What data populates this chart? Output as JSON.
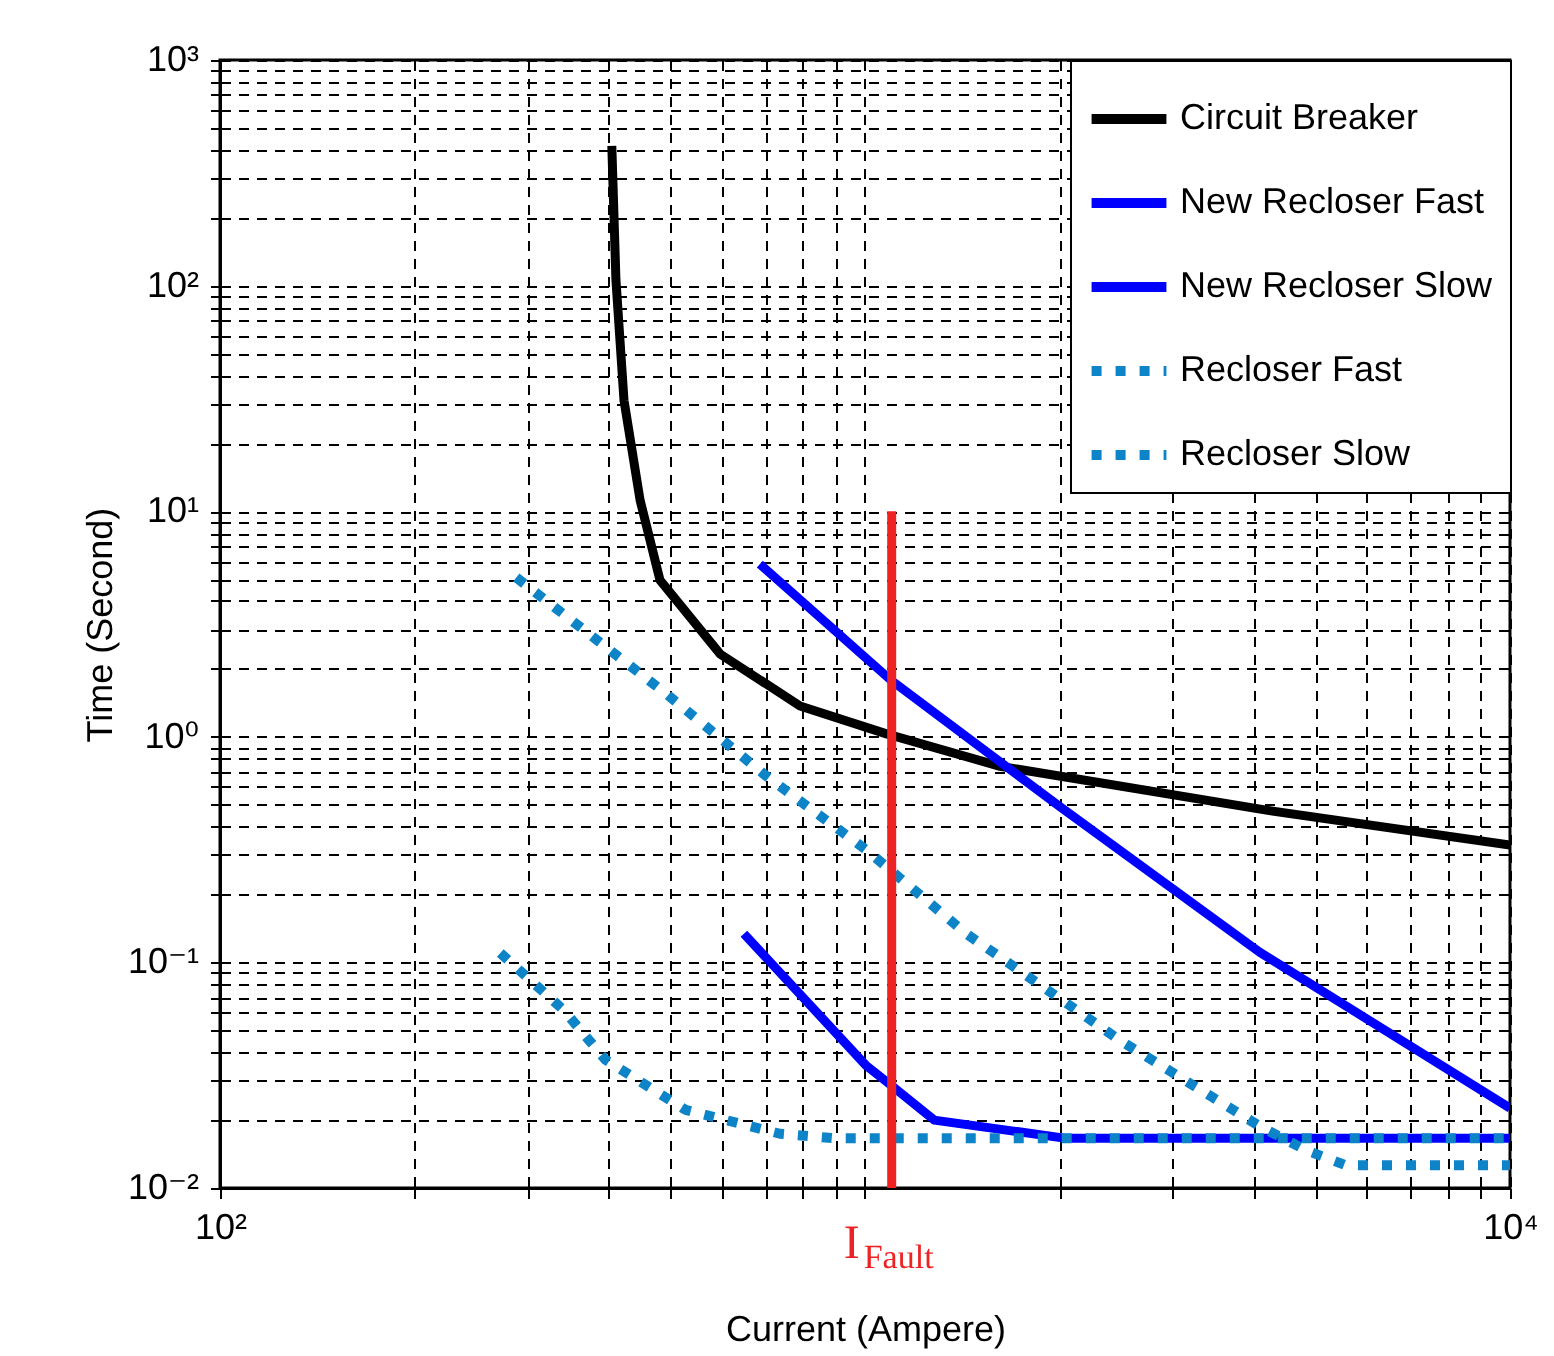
{
  "chart_data": {
    "type": "line",
    "xlabel": "Current (Ampere)",
    "ylabel": "Time (Second)",
    "log": "xy",
    "grid": true,
    "legend": "top right",
    "xlim": [
      100,
      10000
    ],
    "ylim": [
      0.01,
      1000
    ],
    "xticks": [
      {
        "value": 100,
        "label": "10²"
      },
      {
        "value": 200,
        "label": null
      },
      {
        "value": 300,
        "label": null
      },
      {
        "value": 400,
        "label": null
      },
      {
        "value": 500,
        "label": null
      },
      {
        "value": 600,
        "label": null
      },
      {
        "value": 700,
        "label": null
      },
      {
        "value": 800,
        "label": null
      },
      {
        "value": 900,
        "label": null
      },
      {
        "value": 1000,
        "label": null
      },
      {
        "value": 2000,
        "label": null
      },
      {
        "value": 3000,
        "label": null
      },
      {
        "value": 4000,
        "label": null
      },
      {
        "value": 5000,
        "label": null
      },
      {
        "value": 6000,
        "label": null
      },
      {
        "value": 7000,
        "label": null
      },
      {
        "value": 8000,
        "label": null
      },
      {
        "value": 9000,
        "label": null
      },
      {
        "value": 10000,
        "label": "10⁴"
      }
    ],
    "yticks": [
      {
        "value": 0.01,
        "label": "10⁻²"
      },
      {
        "value": 0.02,
        "label": null
      },
      {
        "value": 0.03,
        "label": null
      },
      {
        "value": 0.04,
        "label": null
      },
      {
        "value": 0.05,
        "label": null
      },
      {
        "value": 0.06,
        "label": null
      },
      {
        "value": 0.07,
        "label": null
      },
      {
        "value": 0.08,
        "label": null
      },
      {
        "value": 0.09,
        "label": null
      },
      {
        "value": 0.1,
        "label": "10⁻¹"
      },
      {
        "value": 0.2,
        "label": null
      },
      {
        "value": 0.3,
        "label": null
      },
      {
        "value": 0.4,
        "label": null
      },
      {
        "value": 0.5,
        "label": null
      },
      {
        "value": 0.6,
        "label": null
      },
      {
        "value": 0.7,
        "label": null
      },
      {
        "value": 0.8,
        "label": null
      },
      {
        "value": 0.9,
        "label": null
      },
      {
        "value": 1,
        "label": "10⁰"
      },
      {
        "value": 2,
        "label": null
      },
      {
        "value": 3,
        "label": null
      },
      {
        "value": 4,
        "label": null
      },
      {
        "value": 5,
        "label": null
      },
      {
        "value": 6,
        "label": null
      },
      {
        "value": 7,
        "label": null
      },
      {
        "value": 8,
        "label": null
      },
      {
        "value": 9,
        "label": null
      },
      {
        "value": 10,
        "label": "10¹"
      },
      {
        "value": 20,
        "label": null
      },
      {
        "value": 30,
        "label": null
      },
      {
        "value": 40,
        "label": null
      },
      {
        "value": 50,
        "label": null
      },
      {
        "value": 60,
        "label": null
      },
      {
        "value": 70,
        "label": null
      },
      {
        "value": 80,
        "label": null
      },
      {
        "value": 90,
        "label": null
      },
      {
        "value": 100,
        "label": "10²"
      },
      {
        "value": 200,
        "label": null
      },
      {
        "value": 300,
        "label": null
      },
      {
        "value": 400,
        "label": null
      },
      {
        "value": 500,
        "label": null
      },
      {
        "value": 600,
        "label": null
      },
      {
        "value": 700,
        "label": null
      },
      {
        "value": 800,
        "label": null
      },
      {
        "value": 900,
        "label": null
      },
      {
        "value": 1000,
        "label": "10³"
      }
    ],
    "annotations": [
      "I$_{Fault}$"
    ],
    "series": [
      {
        "name": "Circuit Breaker",
        "color": "#000000",
        "line_style": "solid",
        "x": [
          405,
          411,
          423,
          448,
          481,
          596,
          793,
          1080,
          1620,
          4190,
          10000
        ],
        "values": [
          416,
          106,
          31,
          11.2,
          4.95,
          2.33,
          1.37,
          1.03,
          0.74,
          0.473,
          0.331
        ]
      },
      {
        "name": "New Recloser Fast",
        "color": "#0000ff",
        "line_style": "solid",
        "x": [
          687,
          1095,
          2005,
          4090,
          10000
        ],
        "values": [
          5.83,
          1.79,
          0.49,
          0.111,
          0.0226
        ]
      },
      {
        "name": "New Recloser Slow",
        "color": "#0000ff",
        "line_style": "solid",
        "x": [
          649,
          1005,
          1100,
          1280,
          2050,
          10000
        ],
        "values": [
          0.134,
          0.0348,
          0.0284,
          0.02,
          0.0166,
          0.0166
        ]
      },
      {
        "name": "Recloser Fast",
        "color": "#0e84c8",
        "line_style": "dotted",
        "x": [
          272,
          341,
          396,
          527,
          738,
          900,
          10000
        ],
        "values": [
          0.11,
          0.0615,
          0.037,
          0.0222,
          0.0174,
          0.0166,
          0.0166
        ]
      },
      {
        "name": "Recloser Slow",
        "color": "#0e84c8",
        "line_style": "dotted",
        "x": [
          288,
          492,
          703,
          1005,
          1436,
          2480,
          4090,
          4830,
          5570,
          10000
        ],
        "values": [
          5.08,
          1.55,
          0.67,
          0.315,
          0.134,
          0.0453,
          0.0188,
          0.0147,
          0.0126,
          0.0126
        ]
      },
      {
        "color": "#ee2222",
        "line_style": "solid",
        "x": [
          1100,
          1100
        ],
        "values": [
          0.01,
          10
        ]
      }
    ]
  }
}
